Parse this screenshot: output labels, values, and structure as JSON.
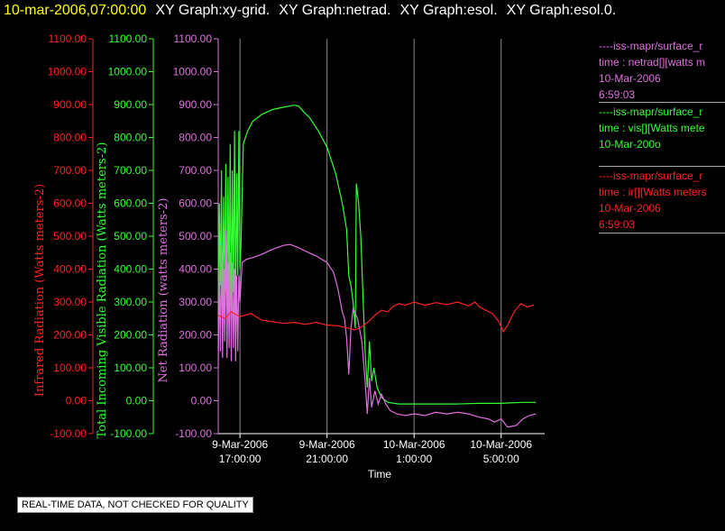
{
  "header": {
    "timestamp": "10-mar-2006,07:00:00",
    "graph_titles": [
      "XY Graph:xy-grid.",
      "XY Graph:netrad.",
      "XY Graph:esol.",
      "XY Graph:esol.0."
    ]
  },
  "legend": [
    {
      "lines": [
        "----iss-mapr/surface_r",
        "time : netrad[][watts m",
        "10-Mar-2006",
        "6:59:03"
      ],
      "color": "#e070e0"
    },
    {
      "lines": [
        "----iss-mapr/surface_r",
        "time : vis[][Watts mete",
        "10-Mar-200o"
      ],
      "color": "#33ff33"
    },
    {
      "lines": [
        "----iss-mapr/surface_r",
        "time : ir[][Watts meters",
        "10-Mar-2006",
        "6:59:03"
      ],
      "color": "#ff2222"
    }
  ],
  "notice": "REAL-TIME DATA, NOT CHECKED FOR QUALITY",
  "chart_data": {
    "type": "line",
    "xlabel": "Time",
    "x_ticks": [
      {
        "hours": 17,
        "label": [
          "9-Mar-2006",
          "17:00:00"
        ]
      },
      {
        "hours": 21,
        "label": [
          "9-Mar-2006",
          "21:00:00"
        ]
      },
      {
        "hours": 25,
        "label": [
          "10-Mar-2006",
          "1:00:00"
        ]
      },
      {
        "hours": 29,
        "label": [
          "10-Mar-2006",
          "5:00:00"
        ]
      }
    ],
    "xlim_hours": [
      16.0,
      31.0
    ],
    "y_axes": [
      {
        "label": "Infrared Radiation (Watts meters-2)",
        "color": "#ff2222",
        "ylim": [
          -100,
          1100
        ]
      },
      {
        "label": "Total Incoming Visible Radiation (Watts meters-2)",
        "color": "#33ff33",
        "ylim": [
          -100,
          1100
        ]
      },
      {
        "label": "Net Radiation (watts meters-2)",
        "color": "#e070e0",
        "ylim": [
          -100,
          1100
        ]
      }
    ],
    "y_ticks": [
      "-100.00",
      "0.00",
      "100.00",
      "200.00",
      "300.00",
      "400.00",
      "500.00",
      "600.00",
      "700.00",
      "800.00",
      "900.00",
      "1000.00",
      "1100.00"
    ],
    "series": [
      {
        "name": "vis",
        "color": "#33ff33",
        "points": [
          [
            16.0,
            160
          ],
          [
            16.05,
            600
          ],
          [
            16.1,
            350
          ],
          [
            16.15,
            700
          ],
          [
            16.2,
            230
          ],
          [
            16.25,
            620
          ],
          [
            16.3,
            330
          ],
          [
            16.35,
            720
          ],
          [
            16.4,
            250
          ],
          [
            16.45,
            680
          ],
          [
            16.5,
            300
          ],
          [
            16.55,
            780
          ],
          [
            16.6,
            250
          ],
          [
            16.65,
            700
          ],
          [
            16.7,
            330
          ],
          [
            16.75,
            820
          ],
          [
            16.8,
            250
          ],
          [
            16.85,
            690
          ],
          [
            16.9,
            380
          ],
          [
            16.95,
            820
          ],
          [
            17.0,
            400
          ],
          [
            17.05,
            480
          ],
          [
            17.15,
            780
          ],
          [
            17.35,
            820
          ],
          [
            17.6,
            850
          ],
          [
            18.0,
            870
          ],
          [
            18.5,
            885
          ],
          [
            19.0,
            892
          ],
          [
            19.5,
            898
          ],
          [
            19.7,
            895
          ],
          [
            19.9,
            880
          ],
          [
            20.2,
            860
          ],
          [
            20.6,
            820
          ],
          [
            21.0,
            770
          ],
          [
            21.4,
            690
          ],
          [
            21.7,
            600
          ],
          [
            21.9,
            520
          ],
          [
            22.0,
            380
          ],
          [
            22.1,
            350
          ],
          [
            22.2,
            300
          ],
          [
            22.3,
            220
          ],
          [
            22.35,
            660
          ],
          [
            22.45,
            600
          ],
          [
            22.55,
            500
          ],
          [
            22.65,
            320
          ],
          [
            22.75,
            150
          ],
          [
            22.85,
            40
          ],
          [
            22.95,
            180
          ],
          [
            23.05,
            60
          ],
          [
            23.15,
            100
          ],
          [
            23.3,
            40
          ],
          [
            23.5,
            10
          ],
          [
            23.8,
            -5
          ],
          [
            24.3,
            -10
          ],
          [
            25.0,
            -10
          ],
          [
            26.0,
            -10
          ],
          [
            27.0,
            -10
          ],
          [
            28.0,
            -8
          ],
          [
            29.0,
            -8
          ],
          [
            30.0,
            -5
          ],
          [
            30.6,
            -5
          ]
        ]
      },
      {
        "name": "netrad",
        "color": "#e070e0",
        "points": [
          [
            16.0,
            100
          ],
          [
            16.05,
            400
          ],
          [
            16.1,
            150
          ],
          [
            16.15,
            480
          ],
          [
            16.2,
            130
          ],
          [
            16.25,
            400
          ],
          [
            16.3,
            180
          ],
          [
            16.35,
            520
          ],
          [
            16.4,
            130
          ],
          [
            16.45,
            420
          ],
          [
            16.5,
            160
          ],
          [
            16.55,
            450
          ],
          [
            16.6,
            120
          ],
          [
            16.65,
            420
          ],
          [
            16.7,
            160
          ],
          [
            16.75,
            400
          ],
          [
            16.8,
            120
          ],
          [
            16.85,
            380
          ],
          [
            16.9,
            150
          ],
          [
            16.95,
            380
          ],
          [
            17.0,
            300
          ],
          [
            17.1,
            420
          ],
          [
            17.3,
            430
          ],
          [
            17.6,
            435
          ],
          [
            18.0,
            445
          ],
          [
            18.5,
            460
          ],
          [
            19.0,
            472
          ],
          [
            19.3,
            475
          ],
          [
            19.7,
            465
          ],
          [
            20.0,
            455
          ],
          [
            20.5,
            440
          ],
          [
            21.0,
            420
          ],
          [
            21.3,
            390
          ],
          [
            21.5,
            340
          ],
          [
            21.7,
            270
          ],
          [
            21.8,
            250
          ],
          [
            21.9,
            190
          ],
          [
            22.0,
            80
          ],
          [
            22.1,
            220
          ],
          [
            22.2,
            280
          ],
          [
            22.4,
            250
          ],
          [
            22.6,
            180
          ],
          [
            22.75,
            60
          ],
          [
            22.85,
            -40
          ],
          [
            22.95,
            70
          ],
          [
            23.05,
            -20
          ],
          [
            23.2,
            30
          ],
          [
            23.35,
            -10
          ],
          [
            23.5,
            20
          ],
          [
            23.7,
            -10
          ],
          [
            23.9,
            -30
          ],
          [
            24.2,
            -40
          ],
          [
            24.6,
            -45
          ],
          [
            25.0,
            -40
          ],
          [
            25.5,
            -45
          ],
          [
            26.0,
            -35
          ],
          [
            26.5,
            -40
          ],
          [
            27.0,
            -35
          ],
          [
            27.5,
            -40
          ],
          [
            28.0,
            -50
          ],
          [
            28.4,
            -55
          ],
          [
            28.7,
            -65
          ],
          [
            29.0,
            -55
          ],
          [
            29.3,
            -80
          ],
          [
            29.7,
            -75
          ],
          [
            30.0,
            -55
          ],
          [
            30.3,
            -45
          ],
          [
            30.6,
            -40
          ]
        ]
      },
      {
        "name": "ir",
        "color": "#ff2222",
        "points": [
          [
            16.0,
            260
          ],
          [
            16.3,
            250
          ],
          [
            16.6,
            270
          ],
          [
            17.0,
            255
          ],
          [
            17.5,
            265
          ],
          [
            18.0,
            245
          ],
          [
            18.5,
            240
          ],
          [
            19.0,
            235
          ],
          [
            19.5,
            238
          ],
          [
            20.0,
            232
          ],
          [
            20.5,
            238
          ],
          [
            21.0,
            230
          ],
          [
            21.5,
            228
          ],
          [
            22.0,
            220
          ],
          [
            22.3,
            215
          ],
          [
            22.6,
            225
          ],
          [
            22.9,
            240
          ],
          [
            23.2,
            260
          ],
          [
            23.5,
            275
          ],
          [
            23.8,
            270
          ],
          [
            24.0,
            285
          ],
          [
            24.3,
            295
          ],
          [
            24.6,
            290
          ],
          [
            25.0,
            300
          ],
          [
            25.5,
            290
          ],
          [
            26.0,
            298
          ],
          [
            26.5,
            292
          ],
          [
            27.0,
            300
          ],
          [
            27.5,
            288
          ],
          [
            27.8,
            300
          ],
          [
            28.0,
            285
          ],
          [
            28.3,
            275
          ],
          [
            28.6,
            265
          ],
          [
            28.9,
            240
          ],
          [
            29.1,
            210
          ],
          [
            29.3,
            230
          ],
          [
            29.6,
            270
          ],
          [
            29.9,
            295
          ],
          [
            30.2,
            285
          ],
          [
            30.5,
            290
          ]
        ]
      }
    ]
  }
}
